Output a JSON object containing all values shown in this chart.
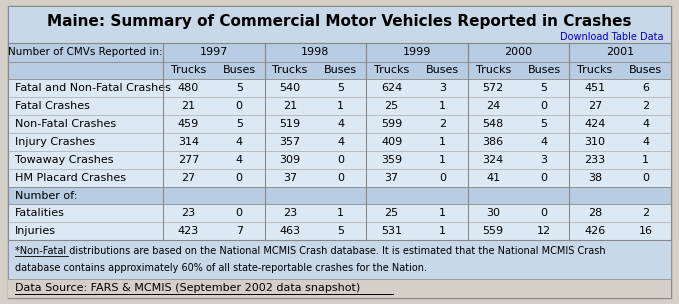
{
  "title": "Maine: Summary of Commercial Motor Vehicles Reported in Crashes",
  "download_link": "Download Table Data",
  "years": [
    "1997",
    "1998",
    "1999",
    "2000",
    "2001"
  ],
  "sub_headers": [
    "Trucks",
    "Buses"
  ],
  "row_label_header": "Number of CMVs Reported in:",
  "section1_rows": [
    [
      "Fatal and Non-Fatal Crashes",
      480,
      5,
      540,
      5,
      624,
      3,
      572,
      5,
      451,
      6
    ],
    [
      "Fatal Crashes",
      21,
      0,
      21,
      1,
      25,
      1,
      24,
      0,
      27,
      2
    ],
    [
      "Non-Fatal Crashes",
      459,
      5,
      519,
      4,
      599,
      2,
      548,
      5,
      424,
      4
    ],
    [
      "Injury Crashes",
      314,
      4,
      357,
      4,
      409,
      1,
      386,
      4,
      310,
      4
    ],
    [
      "Towaway Crashes",
      277,
      4,
      309,
      0,
      359,
      1,
      324,
      3,
      233,
      1
    ],
    [
      "HM Placard Crashes",
      27,
      0,
      37,
      0,
      37,
      0,
      41,
      0,
      38,
      0
    ]
  ],
  "section2_label": "Number of:",
  "section2_rows": [
    [
      "Fatalities",
      23,
      0,
      23,
      1,
      25,
      1,
      30,
      0,
      28,
      2
    ],
    [
      "Injuries",
      423,
      7,
      463,
      5,
      531,
      1,
      559,
      12,
      426,
      16
    ]
  ],
  "footnote_line1": "*Non-Fatal distributions are based on the National MCMIS Crash database. It is estimated that the National MCMIS Crash",
  "footnote_line2": "database contains approximately 60% of all state-reportable crashes for the Nation.",
  "data_source": "Data Source: FARS & MCMIS (September 2002 data snapshot)",
  "bg_outer": "#d4d0c8",
  "bg_title": "#c8d8e8",
  "bg_header": "#b8cce4",
  "bg_table": "#dce9f5",
  "bg_footnote": "#c8d8e8",
  "border_color": "#888888",
  "text_color": "#000000",
  "link_color": "#0000cc",
  "title_fontsize": 11,
  "header_fontsize": 8,
  "cell_fontsize": 8,
  "footnote_fontsize": 7,
  "source_fontsize": 8
}
